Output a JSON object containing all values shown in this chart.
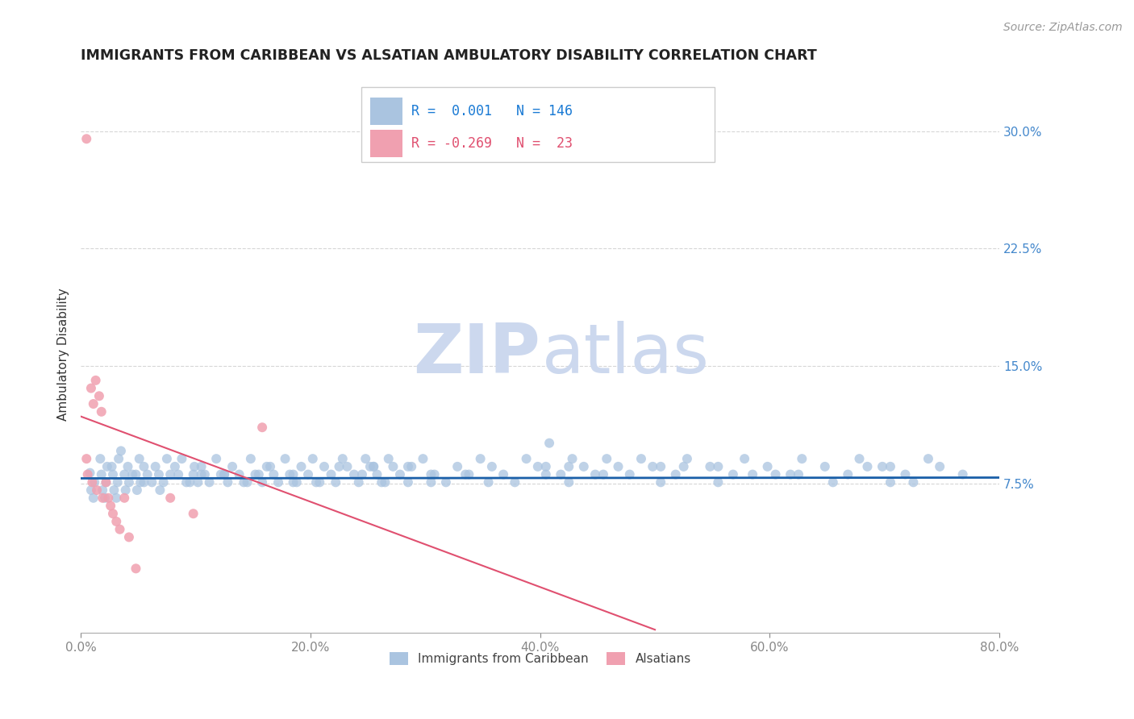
{
  "title": "IMMIGRANTS FROM CARIBBEAN VS ALSATIAN AMBULATORY DISABILITY CORRELATION CHART",
  "source_text": "Source: ZipAtlas.com",
  "ylabel": "Ambulatory Disability",
  "xlim": [
    0.0,
    0.8
  ],
  "ylim": [
    -0.02,
    0.335
  ],
  "yticks": [
    0.075,
    0.15,
    0.225,
    0.3
  ],
  "ytick_labels": [
    "7.5%",
    "15.0%",
    "22.5%",
    "30.0%"
  ],
  "xticks": [
    0.0,
    0.2,
    0.4,
    0.6,
    0.8
  ],
  "xtick_labels": [
    "0.0%",
    "20.0%",
    "40.0%",
    "60.0%",
    "80.0%"
  ],
  "blue_R": 0.001,
  "blue_N": 146,
  "pink_R": -0.269,
  "pink_N": 23,
  "blue_color": "#aac4e0",
  "blue_line_color": "#1a5fa8",
  "pink_color": "#f0a0b0",
  "pink_line_color": "#e05070",
  "legend_R_color": "#1a7ad4",
  "watermark_zip_color": "#ccd8ee",
  "watermark_atlas_color": "#ccd8ee",
  "background_color": "#ffffff",
  "grid_color": "#cccccc",
  "title_color": "#222222",
  "axis_label_color": "#333333",
  "tick_label_color": "#4488cc",
  "blue_scatter_x": [
    0.008,
    0.012,
    0.009,
    0.011,
    0.018,
    0.022,
    0.019,
    0.021,
    0.017,
    0.023,
    0.028,
    0.032,
    0.029,
    0.031,
    0.027,
    0.033,
    0.038,
    0.042,
    0.039,
    0.041,
    0.048,
    0.052,
    0.049,
    0.051,
    0.058,
    0.062,
    0.068,
    0.072,
    0.069,
    0.078,
    0.082,
    0.088,
    0.092,
    0.098,
    0.102,
    0.099,
    0.108,
    0.112,
    0.118,
    0.122,
    0.128,
    0.132,
    0.138,
    0.142,
    0.148,
    0.152,
    0.158,
    0.162,
    0.168,
    0.172,
    0.178,
    0.182,
    0.188,
    0.192,
    0.198,
    0.202,
    0.208,
    0.212,
    0.218,
    0.222,
    0.228,
    0.232,
    0.238,
    0.242,
    0.248,
    0.252,
    0.258,
    0.262,
    0.268,
    0.272,
    0.278,
    0.288,
    0.298,
    0.308,
    0.318,
    0.328,
    0.338,
    0.348,
    0.358,
    0.368,
    0.378,
    0.388,
    0.398,
    0.408,
    0.418,
    0.428,
    0.438,
    0.448,
    0.458,
    0.468,
    0.478,
    0.488,
    0.498,
    0.518,
    0.528,
    0.548,
    0.568,
    0.578,
    0.598,
    0.618,
    0.628,
    0.648,
    0.668,
    0.678,
    0.698,
    0.718,
    0.738,
    0.748,
    0.768,
    0.035,
    0.045,
    0.055,
    0.065,
    0.075,
    0.085,
    0.095,
    0.105,
    0.125,
    0.145,
    0.165,
    0.185,
    0.205,
    0.225,
    0.245,
    0.265,
    0.285,
    0.305,
    0.355,
    0.405,
    0.455,
    0.505,
    0.555,
    0.605,
    0.655,
    0.705,
    0.125,
    0.185,
    0.255,
    0.335,
    0.425,
    0.525,
    0.625,
    0.725,
    0.055,
    0.155,
    0.285,
    0.425,
    0.585,
    0.705,
    0.255,
    0.405,
    0.555,
    0.685,
    0.105,
    0.305,
    0.505
  ],
  "blue_scatter_y": [
    0.082,
    0.076,
    0.071,
    0.066,
    0.081,
    0.076,
    0.071,
    0.066,
    0.091,
    0.086,
    0.081,
    0.076,
    0.071,
    0.066,
    0.086,
    0.091,
    0.081,
    0.076,
    0.071,
    0.086,
    0.081,
    0.076,
    0.071,
    0.091,
    0.081,
    0.076,
    0.081,
    0.076,
    0.071,
    0.081,
    0.086,
    0.091,
    0.076,
    0.081,
    0.076,
    0.086,
    0.081,
    0.076,
    0.091,
    0.081,
    0.076,
    0.086,
    0.081,
    0.076,
    0.091,
    0.081,
    0.076,
    0.086,
    0.081,
    0.076,
    0.091,
    0.081,
    0.076,
    0.086,
    0.081,
    0.091,
    0.076,
    0.086,
    0.081,
    0.076,
    0.091,
    0.086,
    0.081,
    0.076,
    0.091,
    0.086,
    0.081,
    0.076,
    0.091,
    0.086,
    0.081,
    0.086,
    0.091,
    0.081,
    0.076,
    0.086,
    0.081,
    0.091,
    0.086,
    0.081,
    0.076,
    0.091,
    0.086,
    0.101,
    0.081,
    0.091,
    0.086,
    0.081,
    0.091,
    0.086,
    0.081,
    0.091,
    0.086,
    0.081,
    0.091,
    0.086,
    0.081,
    0.091,
    0.086,
    0.081,
    0.091,
    0.086,
    0.081,
    0.091,
    0.086,
    0.081,
    0.091,
    0.086,
    0.081,
    0.096,
    0.081,
    0.076,
    0.086,
    0.091,
    0.081,
    0.076,
    0.086,
    0.081,
    0.076,
    0.086,
    0.081,
    0.076,
    0.086,
    0.081,
    0.076,
    0.086,
    0.081,
    0.076,
    0.086,
    0.081,
    0.076,
    0.086,
    0.081,
    0.076,
    0.086,
    0.081,
    0.076,
    0.086,
    0.081,
    0.076,
    0.086,
    0.081,
    0.076,
    0.086,
    0.081,
    0.076,
    0.086,
    0.081,
    0.076,
    0.086,
    0.081,
    0.076,
    0.086,
    0.081,
    0.076,
    0.086
  ],
  "pink_scatter_x": [
    0.005,
    0.009,
    0.011,
    0.013,
    0.016,
    0.018,
    0.022,
    0.024,
    0.026,
    0.028,
    0.031,
    0.034,
    0.038,
    0.042,
    0.048,
    0.005,
    0.006,
    0.01,
    0.014,
    0.019,
    0.078,
    0.098,
    0.158
  ],
  "pink_scatter_y": [
    0.295,
    0.136,
    0.126,
    0.141,
    0.131,
    0.121,
    0.076,
    0.066,
    0.061,
    0.056,
    0.051,
    0.046,
    0.066,
    0.041,
    0.021,
    0.091,
    0.081,
    0.076,
    0.071,
    0.066,
    0.066,
    0.056,
    0.111
  ],
  "blue_trend_x": [
    0.0,
    0.8
  ],
  "blue_trend_y": [
    0.0785,
    0.079
  ],
  "pink_trend_x": [
    0.0,
    0.5
  ],
  "pink_trend_y": [
    0.118,
    -0.018
  ]
}
